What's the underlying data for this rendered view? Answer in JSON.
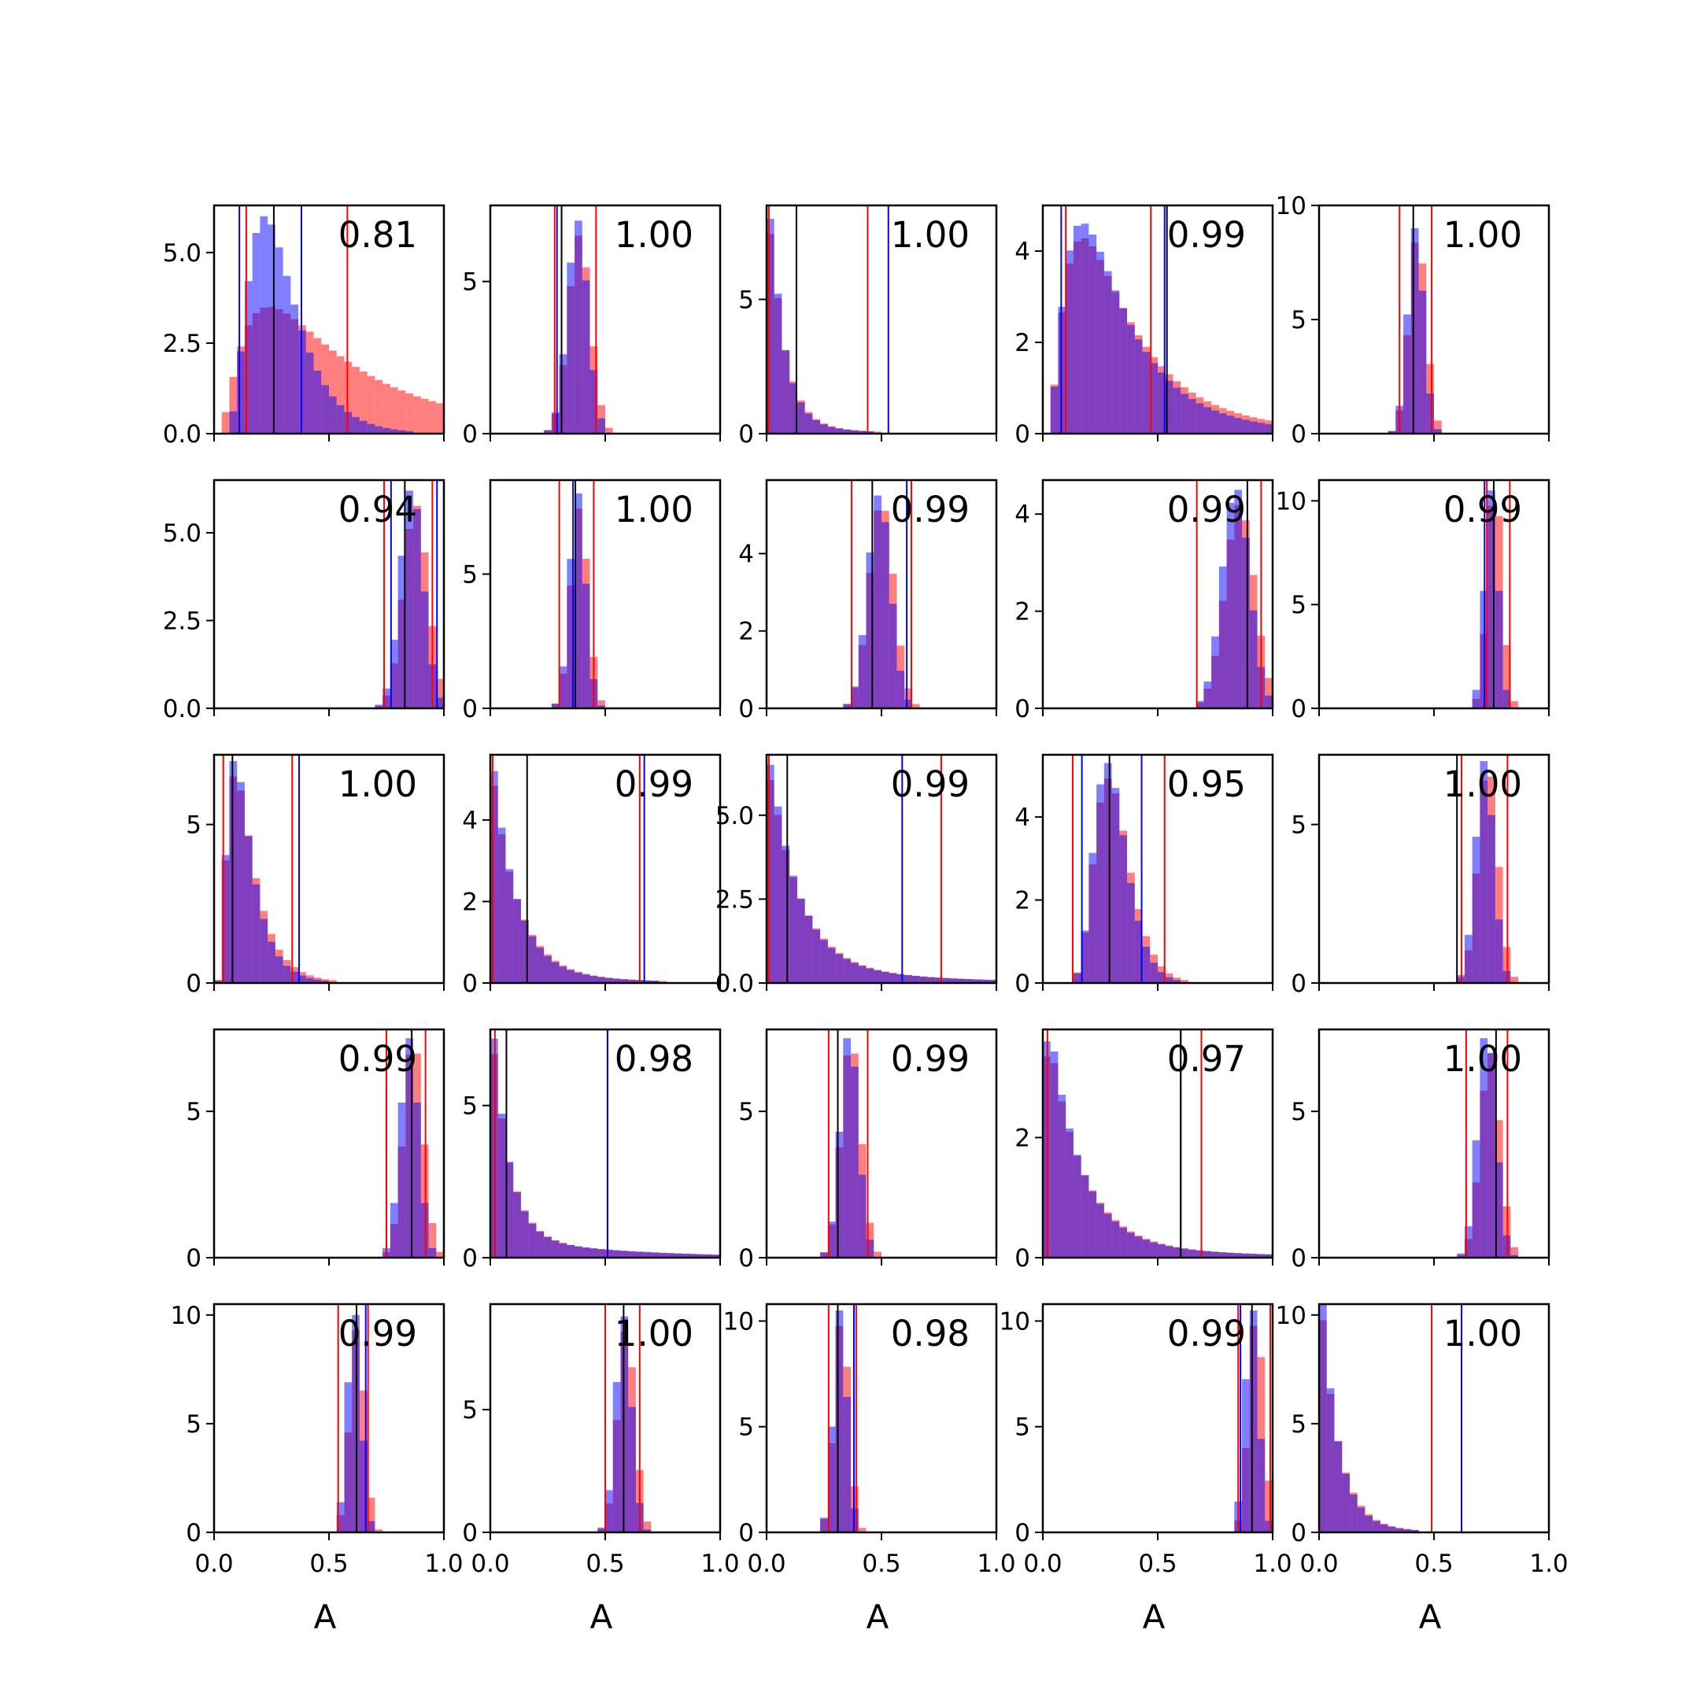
{
  "chart_data": {
    "type": "histogram-grid",
    "rows": 5,
    "cols": 5,
    "xlim": [
      0,
      1
    ],
    "xticks": [
      0.0,
      0.5,
      1.0
    ],
    "xtick_labels": [
      "0.0",
      "0.5",
      "1.0"
    ],
    "xlabel": "A",
    "colors": {
      "red": "#ff0000",
      "blue": "#0000ff",
      "black": "#000000",
      "red_fill": "rgba(255,0,0,0.5)",
      "blue_fill": "rgba(0,0,255,0.5)"
    },
    "panels": [
      {
        "annotation": "0.81",
        "ymax": 6.3,
        "yticks": [
          0,
          2.5,
          5
        ],
        "yticklabels": [
          "0.0",
          "2.5",
          "5.0"
        ],
        "shape": "lognorm",
        "mode": 0.22,
        "spread": 0.1,
        "peak": 6.0,
        "red_shape": "lognorm",
        "red_mode": 0.24,
        "red_spread": 0.2,
        "red_peak": 3.5,
        "lines": {
          "red": [
            0.14,
            0.58
          ],
          "blue": [
            0.11,
            0.38
          ],
          "black": [
            0.26
          ]
        }
      },
      {
        "annotation": "1.00",
        "ymax": 7.5,
        "yticks": [
          0,
          5
        ],
        "yticklabels": [
          "0",
          "5"
        ],
        "shape": "norm",
        "mode": 0.38,
        "spread": 0.045,
        "peak": 7.0,
        "lines": {
          "red": [
            0.28,
            0.46
          ],
          "blue": [
            0.29
          ],
          "black": [
            0.31
          ]
        }
      },
      {
        "annotation": "1.00",
        "ymax": 8.5,
        "yticks": [
          0,
          5
        ],
        "yticklabels": [
          "0",
          "5"
        ],
        "shape": "decay",
        "mode": 0.02,
        "spread": 0.06,
        "peak": 8.0,
        "tail": 0.5,
        "lines": {
          "red": [
            0.01,
            0.44
          ],
          "blue": [
            0.53
          ],
          "black": [
            0.13
          ]
        }
      },
      {
        "annotation": "0.99",
        "ymax": 5.0,
        "yticks": [
          0,
          2,
          4
        ],
        "yticklabels": [
          "0",
          "2",
          "4"
        ],
        "shape": "lognorm",
        "mode": 0.17,
        "spread": 0.12,
        "peak": 4.6,
        "lines": {
          "red": [
            0.1,
            0.47
          ],
          "blue": [
            0.08,
            0.53
          ],
          "black": [
            0.54
          ]
        }
      },
      {
        "annotation": "1.00",
        "ymax": 10.0,
        "yticks": [
          0,
          5,
          10
        ],
        "yticklabels": [
          "0",
          "5",
          "10"
        ],
        "shape": "norm",
        "mode": 0.42,
        "spread": 0.035,
        "peak": 9.0,
        "lines": {
          "red": [
            0.35,
            0.49
          ],
          "blue": [],
          "black": [
            0.41
          ]
        }
      },
      {
        "annotation": "0.94",
        "ymax": 6.5,
        "yticks": [
          0,
          2.5,
          5
        ],
        "yticklabels": [
          "0.0",
          "2.5",
          "5.0"
        ],
        "shape": "norm",
        "mode": 0.86,
        "spread": 0.05,
        "peak": 6.2,
        "lines": {
          "red": [
            0.74,
            0.95
          ],
          "blue": [
            0.77,
            0.97
          ],
          "black": [
            0.83
          ]
        }
      },
      {
        "annotation": "1.00",
        "ymax": 8.5,
        "yticks": [
          0,
          5
        ],
        "yticklabels": [
          "0",
          "5"
        ],
        "shape": "norm",
        "mode": 0.38,
        "spread": 0.035,
        "peak": 8.0,
        "lines": {
          "red": [
            0.3,
            0.45
          ],
          "blue": [
            0.36
          ],
          "black": [
            0.37
          ]
        }
      },
      {
        "annotation": "0.99",
        "ymax": 5.9,
        "yticks": [
          0,
          2,
          4
        ],
        "yticklabels": [
          "0",
          "2",
          "4"
        ],
        "shape": "norm",
        "mode": 0.49,
        "spread": 0.05,
        "peak": 5.5,
        "lines": {
          "red": [
            0.37,
            0.63
          ],
          "blue": [
            0.61
          ],
          "black": [
            0.46
          ]
        }
      },
      {
        "annotation": "0.99",
        "ymax": 4.7,
        "yticks": [
          0,
          2,
          4
        ],
        "yticklabels": [
          "0",
          "2",
          "4"
        ],
        "shape": "norm",
        "mode": 0.84,
        "spread": 0.06,
        "peak": 4.5,
        "lines": {
          "red": [
            0.67,
            0.95
          ],
          "blue": [],
          "black": [
            0.89
          ]
        }
      },
      {
        "annotation": "0.99",
        "ymax": 11.0,
        "yticks": [
          0,
          5,
          10
        ],
        "yticklabels": [
          "0",
          "5",
          "10"
        ],
        "shape": "norm",
        "mode": 0.75,
        "spread": 0.03,
        "peak": 10.5,
        "lines": {
          "red": [
            0.73,
            0.83
          ],
          "blue": [
            0.72
          ],
          "black": [
            0.76
          ]
        }
      },
      {
        "annotation": "1.00",
        "ymax": 7.2,
        "yticks": [
          0,
          5
        ],
        "yticklabels": [
          "0",
          "5"
        ],
        "shape": "lognorm",
        "mode": 0.09,
        "spread": 0.05,
        "peak": 7.0,
        "lines": {
          "red": [
            0.04,
            0.34
          ],
          "blue": [
            0.37
          ],
          "black": [
            0.08
          ]
        }
      },
      {
        "annotation": "0.99",
        "ymax": 5.6,
        "yticks": [
          0,
          2,
          4
        ],
        "yticklabels": [
          "0",
          "2",
          "4"
        ],
        "shape": "decay",
        "mode": 0.01,
        "spread": 0.1,
        "peak": 5.2,
        "tail": 0.7,
        "lines": {
          "red": [
            0.01,
            0.65
          ],
          "blue": [
            0.67
          ],
          "black": [
            0.16
          ]
        }
      },
      {
        "annotation": "0.99",
        "ymax": 6.8,
        "yticks": [
          0,
          2.5,
          5
        ],
        "yticklabels": [
          "0.0",
          "2.5",
          "5.0"
        ],
        "shape": "decay",
        "mode": 0.01,
        "spread": 0.12,
        "peak": 6.5,
        "tail": 1.0,
        "lines": {
          "red": [
            0.01,
            0.76
          ],
          "blue": [
            0.59
          ],
          "black": [
            0.09
          ]
        }
      },
      {
        "annotation": "0.95",
        "ymax": 5.5,
        "yticks": [
          0,
          2,
          4
        ],
        "yticklabels": [
          "0",
          "2",
          "4"
        ],
        "shape": "lognorm",
        "mode": 0.28,
        "spread": 0.07,
        "peak": 5.3,
        "lines": {
          "red": [
            0.13,
            0.53
          ],
          "blue": [
            0.17,
            0.43
          ],
          "black": [
            0.29
          ]
        }
      },
      {
        "annotation": "1.00",
        "ymax": 7.2,
        "yticks": [
          0,
          5
        ],
        "yticklabels": [
          "0",
          "5"
        ],
        "shape": "norm",
        "mode": 0.72,
        "spread": 0.04,
        "peak": 7.0,
        "lines": {
          "red": [
            0.62,
            0.82
          ],
          "blue": [],
          "black": [
            0.6
          ]
        }
      },
      {
        "annotation": "0.99",
        "ymax": 7.8,
        "yticks": [
          0,
          5
        ],
        "yticklabels": [
          "0",
          "5"
        ],
        "shape": "norm",
        "mode": 0.85,
        "spread": 0.04,
        "peak": 7.5,
        "lines": {
          "red": [
            0.75,
            0.92
          ],
          "blue": [],
          "black": [
            0.86
          ]
        }
      },
      {
        "annotation": "0.98",
        "ymax": 7.5,
        "yticks": [
          0,
          5
        ],
        "yticklabels": [
          "0",
          "5"
        ],
        "shape": "decay",
        "mode": 0.01,
        "spread": 0.07,
        "peak": 7.2,
        "tail": 1.0,
        "lines": {
          "red": [
            0.02,
            0.51
          ],
          "blue": [
            0.51
          ],
          "black": [
            0.07
          ]
        }
      },
      {
        "annotation": "0.99",
        "ymax": 7.8,
        "yticks": [
          0,
          5
        ],
        "yticklabels": [
          "0",
          "5"
        ],
        "shape": "norm",
        "mode": 0.36,
        "spread": 0.04,
        "peak": 7.5,
        "lines": {
          "red": [
            0.27,
            0.44
          ],
          "blue": [],
          "black": [
            0.31
          ]
        }
      },
      {
        "annotation": "0.97",
        "ymax": 3.8,
        "yticks": [
          0,
          2
        ],
        "yticklabels": [
          "0",
          "2"
        ],
        "shape": "decay",
        "mode": 0.03,
        "spread": 0.13,
        "peak": 3.6,
        "tail": 1.0,
        "lines": {
          "red": [
            0.02,
            0.69
          ],
          "blue": [
            0.6
          ],
          "black": [
            0.6
          ]
        }
      },
      {
        "annotation": "1.00",
        "ymax": 7.8,
        "yticks": [
          0,
          5
        ],
        "yticklabels": [
          "0",
          "5"
        ],
        "shape": "norm",
        "mode": 0.73,
        "spread": 0.04,
        "peak": 7.5,
        "lines": {
          "red": [
            0.64,
            0.82
          ],
          "blue": [],
          "black": [
            0.77
          ]
        }
      },
      {
        "annotation": "0.99",
        "ymax": 10.5,
        "yticks": [
          0,
          5,
          10
        ],
        "yticklabels": [
          "0",
          "5",
          "10"
        ],
        "shape": "norm",
        "mode": 0.61,
        "spread": 0.03,
        "peak": 10.0,
        "lines": {
          "red": [
            0.54,
            0.67
          ],
          "blue": [
            0.66
          ],
          "black": [
            0.62
          ]
        }
      },
      {
        "annotation": "1.00",
        "ymax": 9.3,
        "yticks": [
          0,
          5
        ],
        "yticklabels": [
          "0",
          "5"
        ],
        "shape": "norm",
        "mode": 0.58,
        "spread": 0.035,
        "peak": 8.8,
        "lines": {
          "red": [
            0.5,
            0.65
          ],
          "blue": [],
          "black": [
            0.58
          ]
        }
      },
      {
        "annotation": "0.98",
        "ymax": 10.8,
        "yticks": [
          0,
          5,
          10
        ],
        "yticklabels": [
          "0",
          "5",
          "10"
        ],
        "shape": "norm",
        "mode": 0.32,
        "spread": 0.03,
        "peak": 10.5,
        "lines": {
          "red": [
            0.27,
            0.39
          ],
          "blue": [
            0.38
          ],
          "black": [
            0.31
          ]
        }
      },
      {
        "annotation": "0.99",
        "ymax": 10.8,
        "yticks": [
          0,
          5,
          10
        ],
        "yticklabels": [
          "0",
          "5",
          "10"
        ],
        "shape": "norm",
        "mode": 0.91,
        "spread": 0.03,
        "peak": 10.5,
        "lines": {
          "red": [
            0.85,
            0.99
          ],
          "blue": [
            0.86
          ],
          "black": [
            0.91
          ]
        }
      },
      {
        "annotation": "1.00",
        "ymax": 10.5,
        "yticks": [
          0,
          5,
          10
        ],
        "yticklabels": [
          "0",
          "5",
          "10"
        ],
        "shape": "decay",
        "mode": 0.01,
        "spread": 0.07,
        "peak": 10.5,
        "tail": 0.4,
        "lines": {
          "red": [
            0.49
          ],
          "blue": [
            0.62
          ],
          "black": []
        }
      }
    ]
  }
}
